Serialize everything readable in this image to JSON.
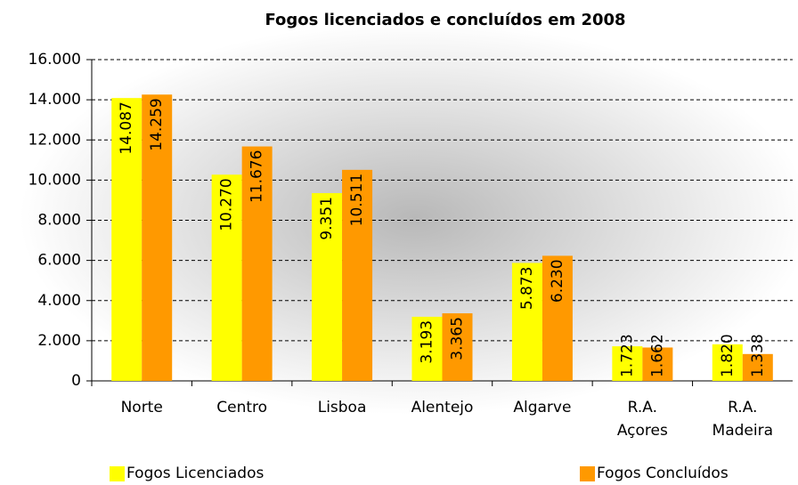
{
  "chart_data": {
    "type": "bar",
    "title": "Fogos licenciados e concluídos em 2008",
    "categories": [
      "Norte",
      "Centro",
      "Lisboa",
      "Alentejo",
      "Algarve",
      "R.A. Açores",
      "R.A. Madeira"
    ],
    "series": [
      {
        "name": "Fogos Licenciados",
        "color": "#ffff00",
        "values": [
          14087,
          10270,
          9351,
          3193,
          5873,
          1723,
          1820
        ],
        "value_labels": [
          "14.087",
          "10.270",
          "9.351",
          "3.193",
          "5.873",
          "1.723",
          "1.820"
        ]
      },
      {
        "name": "Fogos Concluídos",
        "color": "#ff9900",
        "values": [
          14259,
          11676,
          10511,
          3365,
          6230,
          1662,
          1338
        ],
        "value_labels": [
          "14.259",
          "11.676",
          "10.511",
          "3.365",
          "6.230",
          "1.662",
          "1.338"
        ]
      }
    ],
    "ylim": [
      0,
      16000
    ],
    "yticks": [
      0,
      {
        "value": 2000,
        "label": "2.000"
      },
      {
        "value": 4000,
        "label": "4.000"
      },
      {
        "value": 6000,
        "label": "6.000"
      },
      {
        "value": 8000,
        "label": "8.000"
      },
      {
        "value": 10000,
        "label": "10.000"
      },
      {
        "value": 12000,
        "label": "12.000"
      },
      {
        "value": 14000,
        "label": "14.000"
      },
      {
        "value": 16000,
        "label": "16.000"
      }
    ],
    "grid": true
  }
}
